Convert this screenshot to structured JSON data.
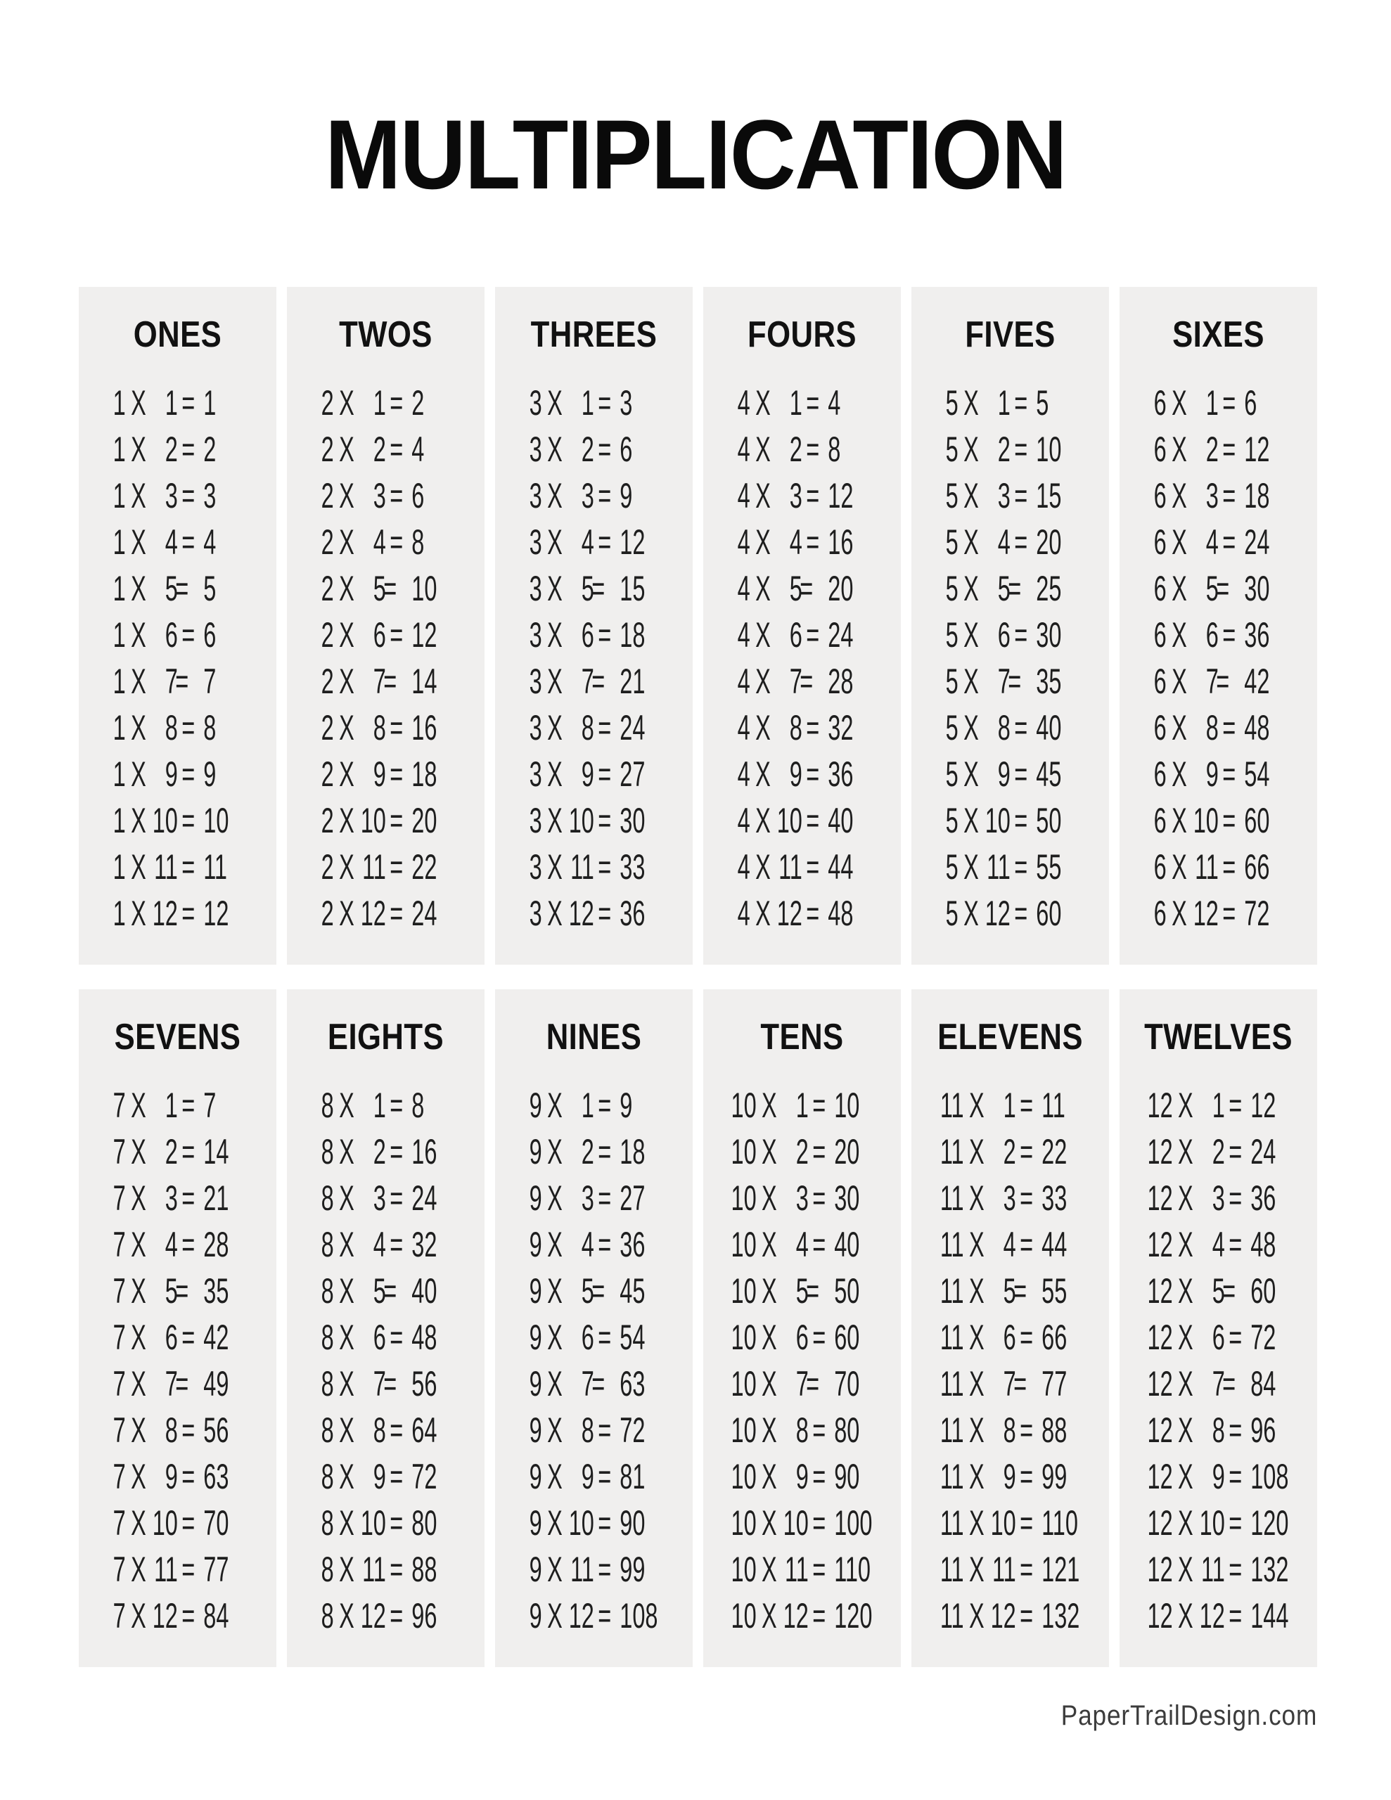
{
  "title": "MULTIPLICATION",
  "symbols": {
    "times": "X",
    "equals": "="
  },
  "colors": {
    "page_bg": "#ffffff",
    "panel_bg": "#f0efee",
    "text": "#1e1e1e",
    "heading_text": "#111111",
    "title_text": "#0a0a0a",
    "footer_text": "#3c3c3c"
  },
  "footer": {
    "brand": "PaperTrailDesign.com"
  },
  "tables": [
    {
      "heading": "ONES",
      "facts": [
        {
          "a": 1,
          "b": 1,
          "r": 1
        },
        {
          "a": 1,
          "b": 2,
          "r": 2
        },
        {
          "a": 1,
          "b": 3,
          "r": 3
        },
        {
          "a": 1,
          "b": 4,
          "r": 4
        },
        {
          "a": 1,
          "b": 5,
          "r": 5
        },
        {
          "a": 1,
          "b": 6,
          "r": 6
        },
        {
          "a": 1,
          "b": 7,
          "r": 7
        },
        {
          "a": 1,
          "b": 8,
          "r": 8
        },
        {
          "a": 1,
          "b": 9,
          "r": 9
        },
        {
          "a": 1,
          "b": 10,
          "r": 10
        },
        {
          "a": 1,
          "b": 11,
          "r": 11
        },
        {
          "a": 1,
          "b": 12,
          "r": 12
        }
      ]
    },
    {
      "heading": "TWOS",
      "facts": [
        {
          "a": 2,
          "b": 1,
          "r": 2
        },
        {
          "a": 2,
          "b": 2,
          "r": 4
        },
        {
          "a": 2,
          "b": 3,
          "r": 6
        },
        {
          "a": 2,
          "b": 4,
          "r": 8
        },
        {
          "a": 2,
          "b": 5,
          "r": 10
        },
        {
          "a": 2,
          "b": 6,
          "r": 12
        },
        {
          "a": 2,
          "b": 7,
          "r": 14
        },
        {
          "a": 2,
          "b": 8,
          "r": 16
        },
        {
          "a": 2,
          "b": 9,
          "r": 18
        },
        {
          "a": 2,
          "b": 10,
          "r": 20
        },
        {
          "a": 2,
          "b": 11,
          "r": 22
        },
        {
          "a": 2,
          "b": 12,
          "r": 24
        }
      ]
    },
    {
      "heading": "THREES",
      "facts": [
        {
          "a": 3,
          "b": 1,
          "r": 3
        },
        {
          "a": 3,
          "b": 2,
          "r": 6
        },
        {
          "a": 3,
          "b": 3,
          "r": 9
        },
        {
          "a": 3,
          "b": 4,
          "r": 12
        },
        {
          "a": 3,
          "b": 5,
          "r": 15
        },
        {
          "a": 3,
          "b": 6,
          "r": 18
        },
        {
          "a": 3,
          "b": 7,
          "r": 21
        },
        {
          "a": 3,
          "b": 8,
          "r": 24
        },
        {
          "a": 3,
          "b": 9,
          "r": 27
        },
        {
          "a": 3,
          "b": 10,
          "r": 30
        },
        {
          "a": 3,
          "b": 11,
          "r": 33
        },
        {
          "a": 3,
          "b": 12,
          "r": 36
        }
      ]
    },
    {
      "heading": "FOURS",
      "facts": [
        {
          "a": 4,
          "b": 1,
          "r": 4
        },
        {
          "a": 4,
          "b": 2,
          "r": 8
        },
        {
          "a": 4,
          "b": 3,
          "r": 12
        },
        {
          "a": 4,
          "b": 4,
          "r": 16
        },
        {
          "a": 4,
          "b": 5,
          "r": 20
        },
        {
          "a": 4,
          "b": 6,
          "r": 24
        },
        {
          "a": 4,
          "b": 7,
          "r": 28
        },
        {
          "a": 4,
          "b": 8,
          "r": 32
        },
        {
          "a": 4,
          "b": 9,
          "r": 36
        },
        {
          "a": 4,
          "b": 10,
          "r": 40
        },
        {
          "a": 4,
          "b": 11,
          "r": 44
        },
        {
          "a": 4,
          "b": 12,
          "r": 48
        }
      ]
    },
    {
      "heading": "FIVES",
      "facts": [
        {
          "a": 5,
          "b": 1,
          "r": 5
        },
        {
          "a": 5,
          "b": 2,
          "r": 10
        },
        {
          "a": 5,
          "b": 3,
          "r": 15
        },
        {
          "a": 5,
          "b": 4,
          "r": 20
        },
        {
          "a": 5,
          "b": 5,
          "r": 25
        },
        {
          "a": 5,
          "b": 6,
          "r": 30
        },
        {
          "a": 5,
          "b": 7,
          "r": 35
        },
        {
          "a": 5,
          "b": 8,
          "r": 40
        },
        {
          "a": 5,
          "b": 9,
          "r": 45
        },
        {
          "a": 5,
          "b": 10,
          "r": 50
        },
        {
          "a": 5,
          "b": 11,
          "r": 55
        },
        {
          "a": 5,
          "b": 12,
          "r": 60
        }
      ]
    },
    {
      "heading": "SIXES",
      "facts": [
        {
          "a": 6,
          "b": 1,
          "r": 6
        },
        {
          "a": 6,
          "b": 2,
          "r": 12
        },
        {
          "a": 6,
          "b": 3,
          "r": 18
        },
        {
          "a": 6,
          "b": 4,
          "r": 24
        },
        {
          "a": 6,
          "b": 5,
          "r": 30
        },
        {
          "a": 6,
          "b": 6,
          "r": 36
        },
        {
          "a": 6,
          "b": 7,
          "r": 42
        },
        {
          "a": 6,
          "b": 8,
          "r": 48
        },
        {
          "a": 6,
          "b": 9,
          "r": 54
        },
        {
          "a": 6,
          "b": 10,
          "r": 60
        },
        {
          "a": 6,
          "b": 11,
          "r": 66
        },
        {
          "a": 6,
          "b": 12,
          "r": 72
        }
      ]
    },
    {
      "heading": "SEVENS",
      "facts": [
        {
          "a": 7,
          "b": 1,
          "r": 7
        },
        {
          "a": 7,
          "b": 2,
          "r": 14
        },
        {
          "a": 7,
          "b": 3,
          "r": 21
        },
        {
          "a": 7,
          "b": 4,
          "r": 28
        },
        {
          "a": 7,
          "b": 5,
          "r": 35
        },
        {
          "a": 7,
          "b": 6,
          "r": 42
        },
        {
          "a": 7,
          "b": 7,
          "r": 49
        },
        {
          "a": 7,
          "b": 8,
          "r": 56
        },
        {
          "a": 7,
          "b": 9,
          "r": 63
        },
        {
          "a": 7,
          "b": 10,
          "r": 70
        },
        {
          "a": 7,
          "b": 11,
          "r": 77
        },
        {
          "a": 7,
          "b": 12,
          "r": 84
        }
      ]
    },
    {
      "heading": "EIGHTS",
      "facts": [
        {
          "a": 8,
          "b": 1,
          "r": 8
        },
        {
          "a": 8,
          "b": 2,
          "r": 16
        },
        {
          "a": 8,
          "b": 3,
          "r": 24
        },
        {
          "a": 8,
          "b": 4,
          "r": 32
        },
        {
          "a": 8,
          "b": 5,
          "r": 40
        },
        {
          "a": 8,
          "b": 6,
          "r": 48
        },
        {
          "a": 8,
          "b": 7,
          "r": 56
        },
        {
          "a": 8,
          "b": 8,
          "r": 64
        },
        {
          "a": 8,
          "b": 9,
          "r": 72
        },
        {
          "a": 8,
          "b": 10,
          "r": 80
        },
        {
          "a": 8,
          "b": 11,
          "r": 88
        },
        {
          "a": 8,
          "b": 12,
          "r": 96
        }
      ]
    },
    {
      "heading": "NINES",
      "facts": [
        {
          "a": 9,
          "b": 1,
          "r": 9
        },
        {
          "a": 9,
          "b": 2,
          "r": 18
        },
        {
          "a": 9,
          "b": 3,
          "r": 27
        },
        {
          "a": 9,
          "b": 4,
          "r": 36
        },
        {
          "a": 9,
          "b": 5,
          "r": 45
        },
        {
          "a": 9,
          "b": 6,
          "r": 54
        },
        {
          "a": 9,
          "b": 7,
          "r": 63
        },
        {
          "a": 9,
          "b": 8,
          "r": 72
        },
        {
          "a": 9,
          "b": 9,
          "r": 81
        },
        {
          "a": 9,
          "b": 10,
          "r": 90
        },
        {
          "a": 9,
          "b": 11,
          "r": 99
        },
        {
          "a": 9,
          "b": 12,
          "r": 108
        }
      ]
    },
    {
      "heading": "TENS",
      "facts": [
        {
          "a": 10,
          "b": 1,
          "r": 10
        },
        {
          "a": 10,
          "b": 2,
          "r": 20
        },
        {
          "a": 10,
          "b": 3,
          "r": 30
        },
        {
          "a": 10,
          "b": 4,
          "r": 40
        },
        {
          "a": 10,
          "b": 5,
          "r": 50
        },
        {
          "a": 10,
          "b": 6,
          "r": 60
        },
        {
          "a": 10,
          "b": 7,
          "r": 70
        },
        {
          "a": 10,
          "b": 8,
          "r": 80
        },
        {
          "a": 10,
          "b": 9,
          "r": 90
        },
        {
          "a": 10,
          "b": 10,
          "r": 100
        },
        {
          "a": 10,
          "b": 11,
          "r": 110
        },
        {
          "a": 10,
          "b": 12,
          "r": 120
        }
      ]
    },
    {
      "heading": "ELEVENS",
      "facts": [
        {
          "a": 11,
          "b": 1,
          "r": 11
        },
        {
          "a": 11,
          "b": 2,
          "r": 22
        },
        {
          "a": 11,
          "b": 3,
          "r": 33
        },
        {
          "a": 11,
          "b": 4,
          "r": 44
        },
        {
          "a": 11,
          "b": 5,
          "r": 55
        },
        {
          "a": 11,
          "b": 6,
          "r": 66
        },
        {
          "a": 11,
          "b": 7,
          "r": 77
        },
        {
          "a": 11,
          "b": 8,
          "r": 88
        },
        {
          "a": 11,
          "b": 9,
          "r": 99
        },
        {
          "a": 11,
          "b": 10,
          "r": 110
        },
        {
          "a": 11,
          "b": 11,
          "r": 121
        },
        {
          "a": 11,
          "b": 12,
          "r": 132
        }
      ]
    },
    {
      "heading": "TWELVES",
      "facts": [
        {
          "a": 12,
          "b": 1,
          "r": 12
        },
        {
          "a": 12,
          "b": 2,
          "r": 24
        },
        {
          "a": 12,
          "b": 3,
          "r": 36
        },
        {
          "a": 12,
          "b": 4,
          "r": 48
        },
        {
          "a": 12,
          "b": 5,
          "r": 60
        },
        {
          "a": 12,
          "b": 6,
          "r": 72
        },
        {
          "a": 12,
          "b": 7,
          "r": 84
        },
        {
          "a": 12,
          "b": 8,
          "r": 96
        },
        {
          "a": 12,
          "b": 9,
          "r": 108
        },
        {
          "a": 12,
          "b": 10,
          "r": 120
        },
        {
          "a": 12,
          "b": 11,
          "r": 132
        },
        {
          "a": 12,
          "b": 12,
          "r": 144
        }
      ]
    }
  ]
}
